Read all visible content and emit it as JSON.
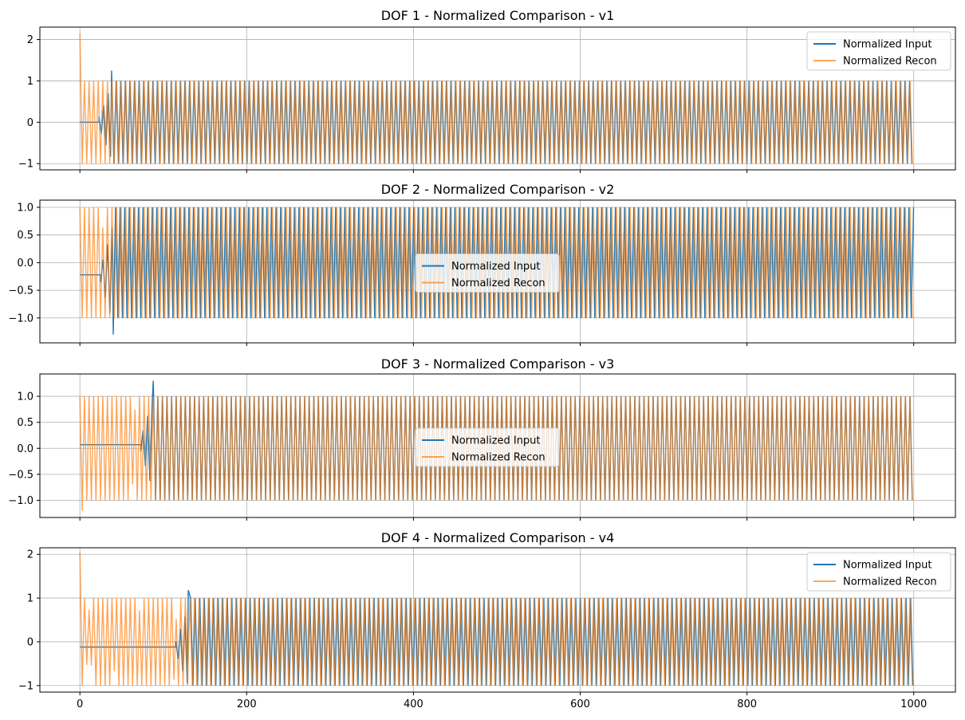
{
  "chart_data": [
    {
      "type": "line",
      "title": "DOF 1 - Normalized Comparison - v1",
      "xlim": [
        -48,
        1050
      ],
      "ylim": [
        -1.15,
        2.3
      ],
      "yticks": [
        -1,
        0,
        1,
        2
      ],
      "ytick_labels": [
        "−1",
        "0",
        "1",
        "2"
      ],
      "legend_loc": "upper right",
      "grid": true,
      "series": [
        {
          "name": "Normalized Input",
          "color": "#1f77b4",
          "initial_level": 0.0,
          "onset_x": 38,
          "peak": 1.25,
          "period": 5.5
        },
        {
          "name": "Normalized Recon",
          "color": "#ff7f0e",
          "alpha": 0.7,
          "start_spike": 2.15,
          "start_min": -1.0,
          "period": 5.5
        }
      ]
    },
    {
      "type": "line",
      "title": "DOF 2 - Normalized Comparison - v2",
      "xlim": [
        -48,
        1050
      ],
      "ylim": [
        -1.45,
        1.13
      ],
      "yticks": [
        -1.0,
        -0.5,
        0.0,
        0.5,
        1.0
      ],
      "ytick_labels": [
        "−1.0",
        "−0.5",
        "0.0",
        "0.5",
        "1.0"
      ],
      "legend_loc": "center",
      "grid": true,
      "series": [
        {
          "name": "Normalized Input",
          "color": "#1f77b4",
          "initial_level": -0.22,
          "onset_x": 40,
          "dip": -1.3,
          "period": 5.5
        },
        {
          "name": "Normalized Recon",
          "color": "#ff7f0e",
          "alpha": 0.7,
          "start_min": -1.0,
          "period": 5.5
        }
      ]
    },
    {
      "type": "line",
      "title": "DOF 3 - Normalized Comparison - v3",
      "xlim": [
        -48,
        1050
      ],
      "ylim": [
        -1.33,
        1.43
      ],
      "yticks": [
        -1.0,
        -0.5,
        0.0,
        0.5,
        1.0
      ],
      "ytick_labels": [
        "−1.0",
        "−0.5",
        "0.0",
        "0.5",
        "1.0"
      ],
      "legend_loc": "center",
      "grid": true,
      "series": [
        {
          "name": "Normalized Input",
          "color": "#1f77b4",
          "initial_level": 0.07,
          "onset_x": 88,
          "peak": 1.3,
          "period": 5.5
        },
        {
          "name": "Normalized Recon",
          "color": "#ff7f0e",
          "alpha": 0.7,
          "start_min": -1.2,
          "period": 5.5
        }
      ]
    },
    {
      "type": "line",
      "title": "DOF 4 - Normalized Comparison - v4",
      "xlim": [
        -48,
        1050
      ],
      "ylim": [
        -1.15,
        2.15
      ],
      "yticks": [
        -1,
        0,
        1,
        2
      ],
      "ytick_labels": [
        "−1",
        "0",
        "1",
        "2"
      ],
      "xticks": [
        0,
        200,
        400,
        600,
        800,
        1000
      ],
      "xtick_labels": [
        "0",
        "200",
        "400",
        "600",
        "800",
        "1000"
      ],
      "legend_loc": "upper right",
      "grid": true,
      "series": [
        {
          "name": "Normalized Input",
          "color": "#1f77b4",
          "initial_level": -0.12,
          "onset_x": 130,
          "peak": 1.18,
          "period": 5.5
        },
        {
          "name": "Normalized Recon",
          "color": "#ff7f0e",
          "alpha": 0.7,
          "start_spike": 2.05,
          "start_min": -1.0,
          "period": 5.5
        }
      ]
    }
  ],
  "x_data_max": 1000
}
